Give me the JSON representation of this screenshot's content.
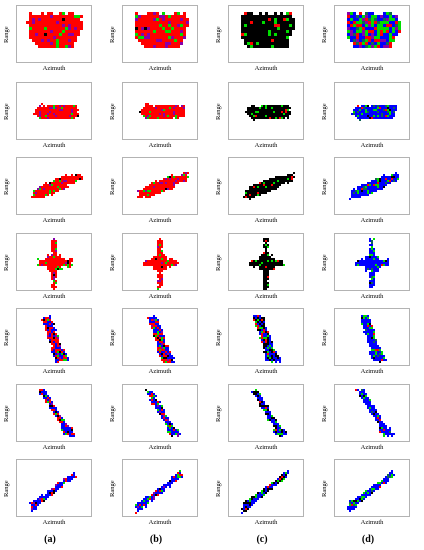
{
  "figure": {
    "column_labels": [
      "(a)",
      "(b)",
      "(c)",
      "(d)"
    ],
    "axis_labels": {
      "x": "Azimuth",
      "y": "Range"
    },
    "rows": 7,
    "columns": 4,
    "colors": {
      "red": "#ff0000",
      "green": "#00dd00",
      "blue": "#0000ff",
      "black": "#000000",
      "dark_red": "#8b0000",
      "purple": "#8800aa",
      "teal": "#116655",
      "dark_blue": "#000066",
      "white": "#ffffff",
      "frame": "#b3b3b3"
    },
    "column_palettes": [
      "red-dominant",
      "red-dominant",
      "black-dominant",
      "blue-dominant"
    ]
  }
}
